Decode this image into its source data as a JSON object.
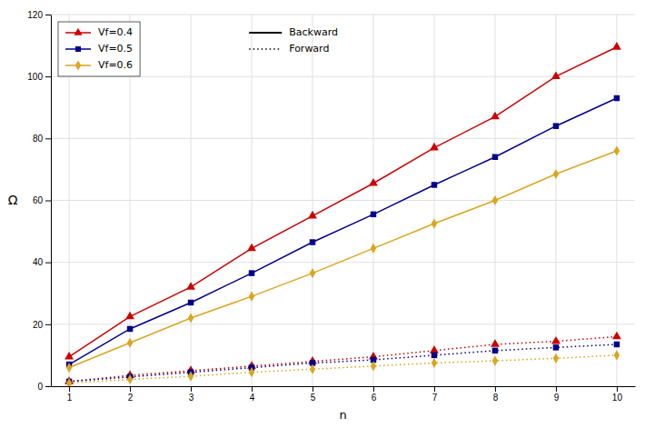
{
  "chart_data": {
    "type": "line",
    "x": [
      1,
      2,
      3,
      4,
      5,
      6,
      7,
      8,
      9,
      10
    ],
    "xlabel": "n",
    "ylabel": "Ω",
    "xlim": [
      0.7,
      10.3
    ],
    "xticks": [
      1,
      2,
      3,
      4,
      5,
      6,
      7,
      8,
      9,
      10
    ],
    "ylim": [
      0,
      120
    ],
    "yticks": [
      0,
      20,
      40,
      60,
      80,
      100,
      120
    ],
    "grid": true,
    "legend": "upper left",
    "series": [
      {
        "name": "Vf=0.4",
        "color": "#cc0000",
        "marker": "triangle",
        "line_style": "solid",
        "values": [
          9.5,
          22.5,
          32.0,
          44.5,
          55.0,
          65.5,
          77.0,
          87.0,
          100.0,
          109.5
        ]
      },
      {
        "name": "Vf=0.5",
        "color": "#00008B",
        "marker": "square",
        "line_style": "solid",
        "values": [
          7.0,
          18.5,
          27.0,
          36.5,
          46.5,
          55.5,
          65.0,
          74.0,
          84.0,
          93.0
        ]
      },
      {
        "name": "Vf=0.6",
        "color": "#DAA520",
        "marker": "diamond",
        "line_style": "solid",
        "values": [
          6.0,
          14.0,
          22.0,
          29.0,
          36.5,
          44.5,
          52.5,
          60.0,
          68.5,
          76.0
        ]
      },
      {
        "color": "#cc0000",
        "marker": "triangle",
        "line_style": "dotted",
        "values": [
          1.5,
          3.5,
          5.0,
          6.5,
          8.0,
          9.5,
          11.5,
          13.5,
          14.5,
          16.0
        ]
      },
      {
        "color": "#00008B",
        "marker": "square",
        "line_style": "dotted",
        "values": [
          1.5,
          3.0,
          4.5,
          6.0,
          7.5,
          8.5,
          10.0,
          11.5,
          12.5,
          13.5
        ]
      },
      {
        "color": "#DAA520",
        "marker": "diamond",
        "line_style": "dotted",
        "values": [
          1.0,
          2.2,
          3.2,
          4.5,
          5.5,
          6.5,
          7.5,
          8.2,
          9.0,
          10.0
        ]
      }
    ],
    "line_styles": [
      {
        "name": "Backward",
        "line_style": "solid"
      },
      {
        "name": "Forward",
        "line_style": "dotted"
      }
    ]
  }
}
